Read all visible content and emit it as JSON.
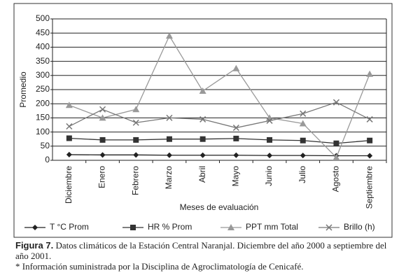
{
  "chart_data": {
    "type": "line",
    "y_label": "Promedio",
    "x_label": "Meses de evaluación",
    "categories": [
      "Diciembre",
      "Enero",
      "Febrero",
      "Marzo",
      "Abril",
      "Mayo",
      "Junio",
      "Julio",
      "Agosto",
      "Septiembre"
    ],
    "series": [
      {
        "name": "T °C Prom",
        "color": "#222222",
        "marker": "diamond",
        "values": [
          20,
          19,
          19,
          18,
          18,
          18,
          17,
          17,
          16,
          16
        ]
      },
      {
        "name": "HR % Prom",
        "color": "#333333",
        "marker": "square",
        "values": [
          78,
          72,
          72,
          75,
          75,
          77,
          72,
          70,
          60,
          70
        ]
      },
      {
        "name": "PPT mm Total",
        "color": "#999999",
        "marker": "triangle",
        "values": [
          195,
          150,
          180,
          440,
          245,
          325,
          150,
          130,
          10,
          305
        ]
      },
      {
        "name": "Brillo (h)",
        "color": "#777777",
        "marker": "x",
        "values": [
          120,
          180,
          133,
          150,
          145,
          115,
          140,
          165,
          205,
          145
        ]
      }
    ],
    "ylim": [
      0,
      500
    ],
    "yticks": [
      0,
      50,
      100,
      150,
      200,
      250,
      300,
      350,
      400,
      450,
      500
    ],
    "grid": true,
    "caption_label": "Figura 7.",
    "caption": "Datos climáticos de la Estación Central Naranjal. Diciembre del año 2000 a septiembre del año 2001.",
    "note": "* Información suministrada por la Disciplina de Agroclimatología de Cenicafé."
  }
}
